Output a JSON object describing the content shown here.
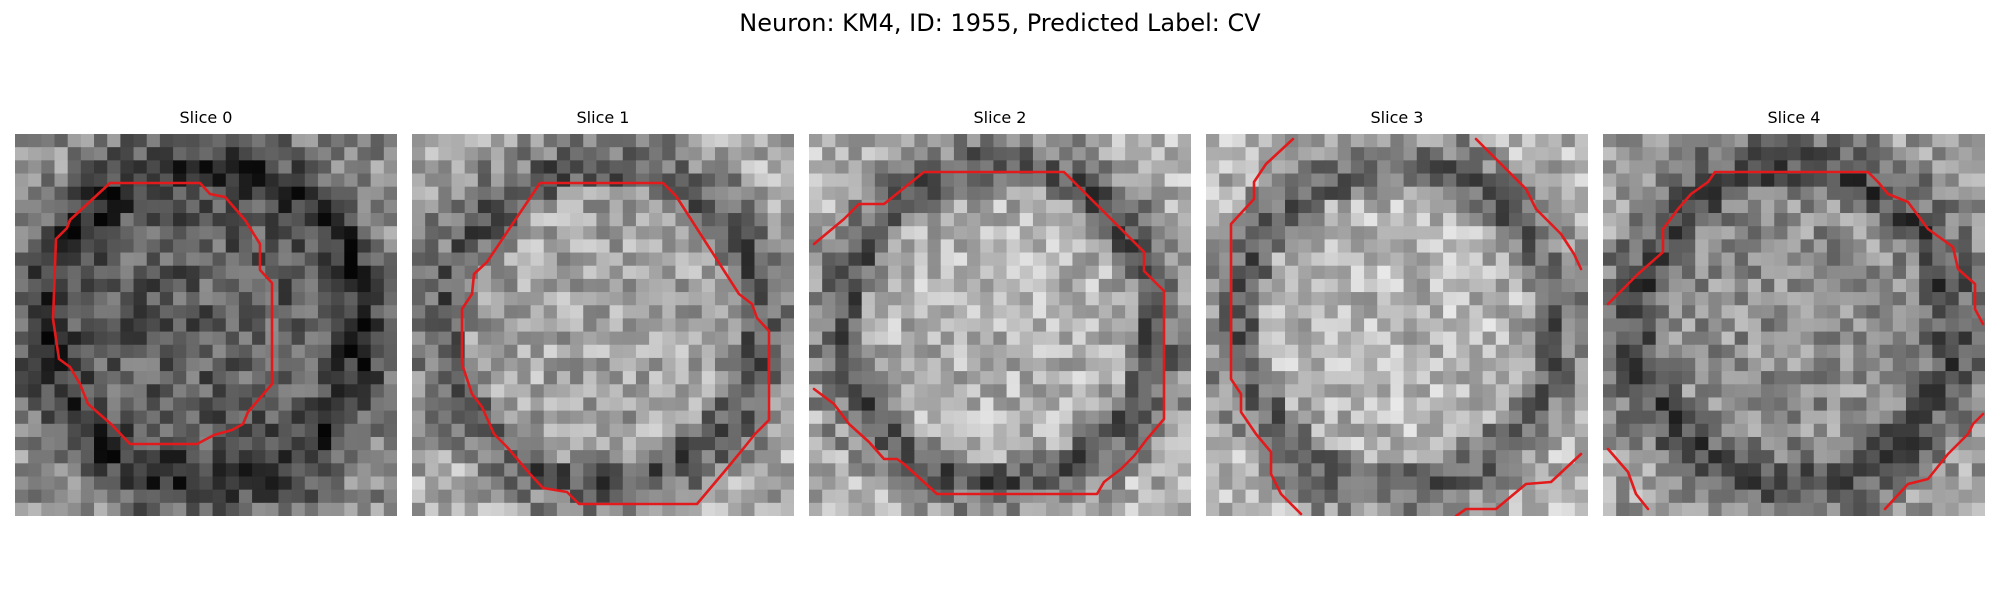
{
  "figure": {
    "title": "Neuron: KM4, ID: 1955, Predicted Label: CV"
  },
  "colors": {
    "contour": "#e31a1c",
    "background": "#ffffff"
  },
  "panels": [
    {
      "title": "Slice 0",
      "base_gray": 0.42,
      "center_shift": -0.05,
      "ring_dark": 0.12,
      "seed": 11
    },
    {
      "title": "Slice 1",
      "base_gray": 0.55,
      "center_shift": 0.1,
      "ring_dark": 0.1,
      "seed": 23
    },
    {
      "title": "Slice 2",
      "base_gray": 0.58,
      "center_shift": 0.12,
      "ring_dark": 0.12,
      "seed": 37
    },
    {
      "title": "Slice 3",
      "base_gray": 0.58,
      "center_shift": 0.14,
      "ring_dark": 0.1,
      "seed": 41
    },
    {
      "title": "Slice 4",
      "base_gray": 0.5,
      "center_shift": 0.06,
      "ring_dark": 0.1,
      "seed": 53
    }
  ]
}
